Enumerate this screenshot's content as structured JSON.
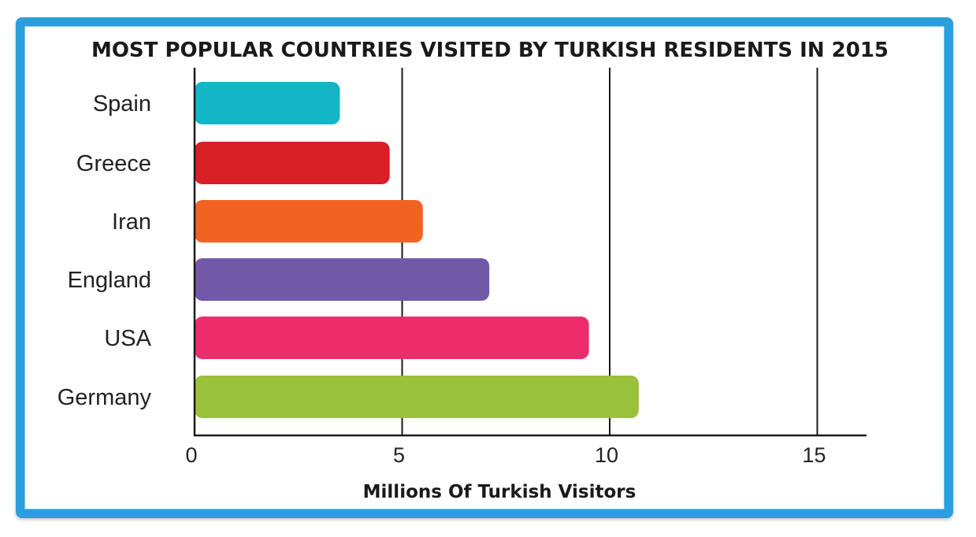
{
  "chart_data": {
    "type": "bar",
    "orientation": "horizontal",
    "title": "MOST POPULAR COUNTRIES VISITED BY TURKISH RESIDENTS IN 2015",
    "xlabel": "Millions Of Turkish Visitors",
    "ylabel": "",
    "categories": [
      "Spain",
      "Greece",
      "Iran",
      "England",
      "USA",
      "Germany"
    ],
    "values": [
      3.5,
      4.7,
      5.5,
      7.1,
      9.5,
      10.7
    ],
    "colors": [
      "#13b5c6",
      "#d91f26",
      "#f26322",
      "#7259a8",
      "#ee2c6b",
      "#99c13c"
    ],
    "xlim": [
      0,
      15
    ],
    "xticks": [
      "0",
      "5",
      "10",
      "15"
    ],
    "grid": true,
    "frame_color": "#2b9fdc"
  }
}
